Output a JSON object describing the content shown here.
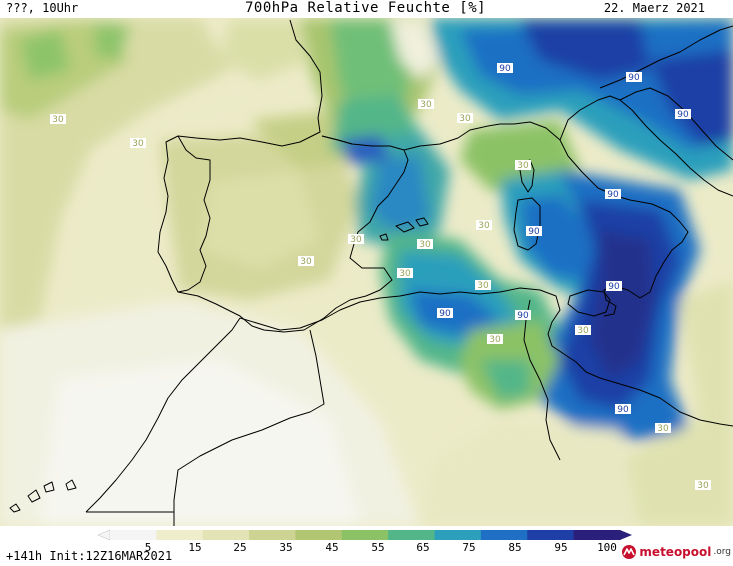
{
  "header": {
    "left": "???, 10Uhr",
    "title": "700hPa Relative Feuchte [%]",
    "date": "22. Maerz 2021"
  },
  "footer": {
    "run": "+141h  Init:12Z16MAR2021",
    "logo": "meteopool",
    "logo_suffix": ".org",
    "logo_icon": "meteopool-logo-icon"
  },
  "colorbar": {
    "labels": [
      "5",
      "15",
      "25",
      "35",
      "45",
      "55",
      "65",
      "75",
      "85",
      "95",
      "100"
    ],
    "colors": [
      "#f5f5f5",
      "#eeeecc",
      "#e3e4b6",
      "#cdd392",
      "#b2c573",
      "#8cc266",
      "#52b689",
      "#2c9fbc",
      "#1f6fc4",
      "#1e3fa6",
      "#2a1f7a"
    ]
  },
  "contour_labels": [
    "30",
    "30",
    "30",
    "90",
    "90",
    "90",
    "30",
    "30",
    "30",
    "30",
    "30",
    "90",
    "90",
    "30",
    "30",
    "30",
    "30",
    "90",
    "30",
    "90",
    "90",
    "90",
    "30",
    "30"
  ]
}
